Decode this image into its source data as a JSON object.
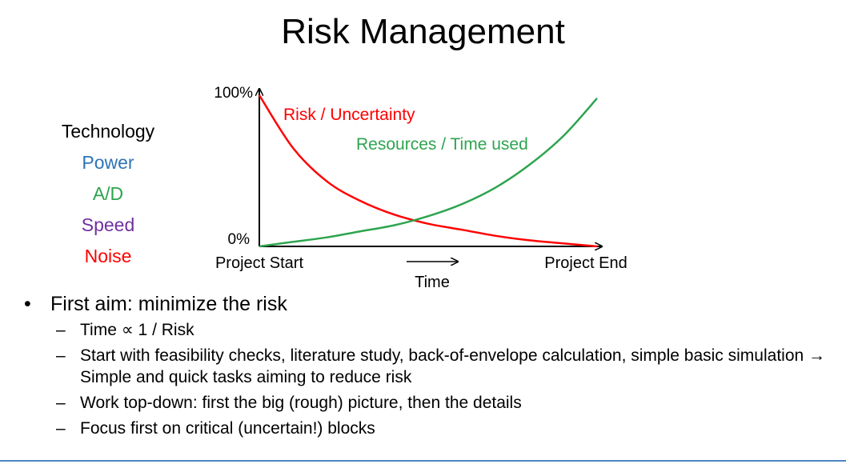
{
  "slide": {
    "title": "Risk Management"
  },
  "legend": {
    "heading": "Technology",
    "items": [
      {
        "label": "Power",
        "color": "#2e75b6"
      },
      {
        "label": "A/D",
        "color": "#2ea44f"
      },
      {
        "label": "Speed",
        "color": "#7030a0"
      },
      {
        "label": "Noise",
        "color": "#ff0000"
      }
    ]
  },
  "chart_data": {
    "type": "line",
    "title": "",
    "xlabel": "Time",
    "x_start_label": "Project Start",
    "x_end_label": "Project End",
    "y_top_label": "100%",
    "y_bottom_label": "0%",
    "ylim": [
      0,
      100
    ],
    "x": [
      0,
      10,
      20,
      30,
      40,
      50,
      60,
      70,
      80,
      90,
      100
    ],
    "series": [
      {
        "name": "Risk / Uncertainty",
        "color": "#ff0000",
        "values": [
          100,
          65,
          43,
          30,
          21,
          15,
          11,
          7,
          4,
          2,
          0
        ]
      },
      {
        "name": "Resources / Time used",
        "color": "#2ea44f",
        "values": [
          0,
          3,
          6,
          10,
          14,
          20,
          28,
          39,
          54,
          73,
          98
        ]
      }
    ]
  },
  "bullets": {
    "main": "First aim: minimize the risk",
    "subs": [
      "Time ∝ 1 / Risk",
      "Start with feasibility checks, literature study, back-of-envelope calculation, simple basic simulation → Simple and quick tasks aiming to reduce risk",
      "Work top-down: first the big (rough) picture, then the details",
      "Focus first on critical (uncertain!) blocks"
    ]
  },
  "colors": {
    "accent_line": "#4a86c5"
  }
}
